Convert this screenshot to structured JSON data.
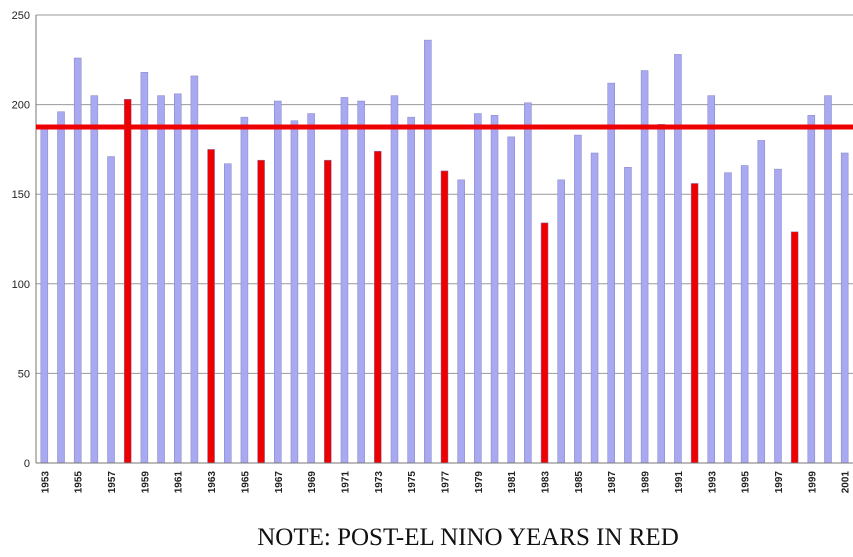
{
  "chart_data": {
    "type": "bar",
    "note": "NOTE:   POST-EL NINO YEARS IN RED",
    "categories": [
      "1953",
      null,
      "1955",
      null,
      "1957",
      null,
      "1959",
      null,
      "1961",
      null,
      "1963",
      null,
      "1965",
      null,
      "1967",
      null,
      "1969",
      null,
      "1971",
      null,
      "1973",
      null,
      "1975",
      null,
      "1977",
      null,
      "1979",
      null,
      "1981",
      null,
      "1983",
      null,
      "1985",
      null,
      "1987",
      null,
      "1989",
      null,
      "1991",
      null,
      "1993",
      null,
      "1995",
      null,
      "1997",
      null,
      "1999",
      null,
      "2001"
    ],
    "values": [
      188,
      196,
      226,
      205,
      171,
      203,
      218,
      205,
      206,
      216,
      175,
      167,
      193,
      169,
      202,
      191,
      195,
      169,
      204,
      202,
      174,
      205,
      193,
      236,
      163,
      158,
      195,
      194,
      182,
      201,
      134,
      158,
      183,
      173,
      212,
      165,
      219,
      189,
      228,
      156,
      205,
      162,
      166,
      180,
      164,
      129,
      194,
      205,
      173
    ],
    "colors": [
      "#a9a9f2",
      "#a9a9f2",
      "#a9a9f2",
      "#a9a9f2",
      "#a9a9f2",
      "#ee0000",
      "#a9a9f2",
      "#a9a9f2",
      "#a9a9f2",
      "#a9a9f2",
      "#ee0000",
      "#a9a9f2",
      "#a9a9f2",
      "#ee0000",
      "#a9a9f2",
      "#a9a9f2",
      "#a9a9f2",
      "#ee0000",
      "#a9a9f2",
      "#a9a9f2",
      "#ee0000",
      "#a9a9f2",
      "#a9a9f2",
      "#a9a9f2",
      "#ee0000",
      "#a9a9f2",
      "#a9a9f2",
      "#a9a9f2",
      "#a9a9f2",
      "#a9a9f2",
      "#ee0000",
      "#a9a9f2",
      "#a9a9f2",
      "#a9a9f2",
      "#a9a9f2",
      "#a9a9f2",
      "#a9a9f2",
      "#a9a9f2",
      "#a9a9f2",
      "#ee0000",
      "#a9a9f2",
      "#a9a9f2",
      "#a9a9f2",
      "#a9a9f2",
      "#a9a9f2",
      "#ee0000",
      "#a9a9f2",
      "#a9a9f2",
      "#a9a9f2"
    ],
    "reference_line": {
      "value": 187.5,
      "color": "#ee0000"
    },
    "ylim": [
      0,
      250
    ],
    "yticks": [
      0,
      50,
      100,
      150,
      200,
      250
    ],
    "grid": true
  }
}
